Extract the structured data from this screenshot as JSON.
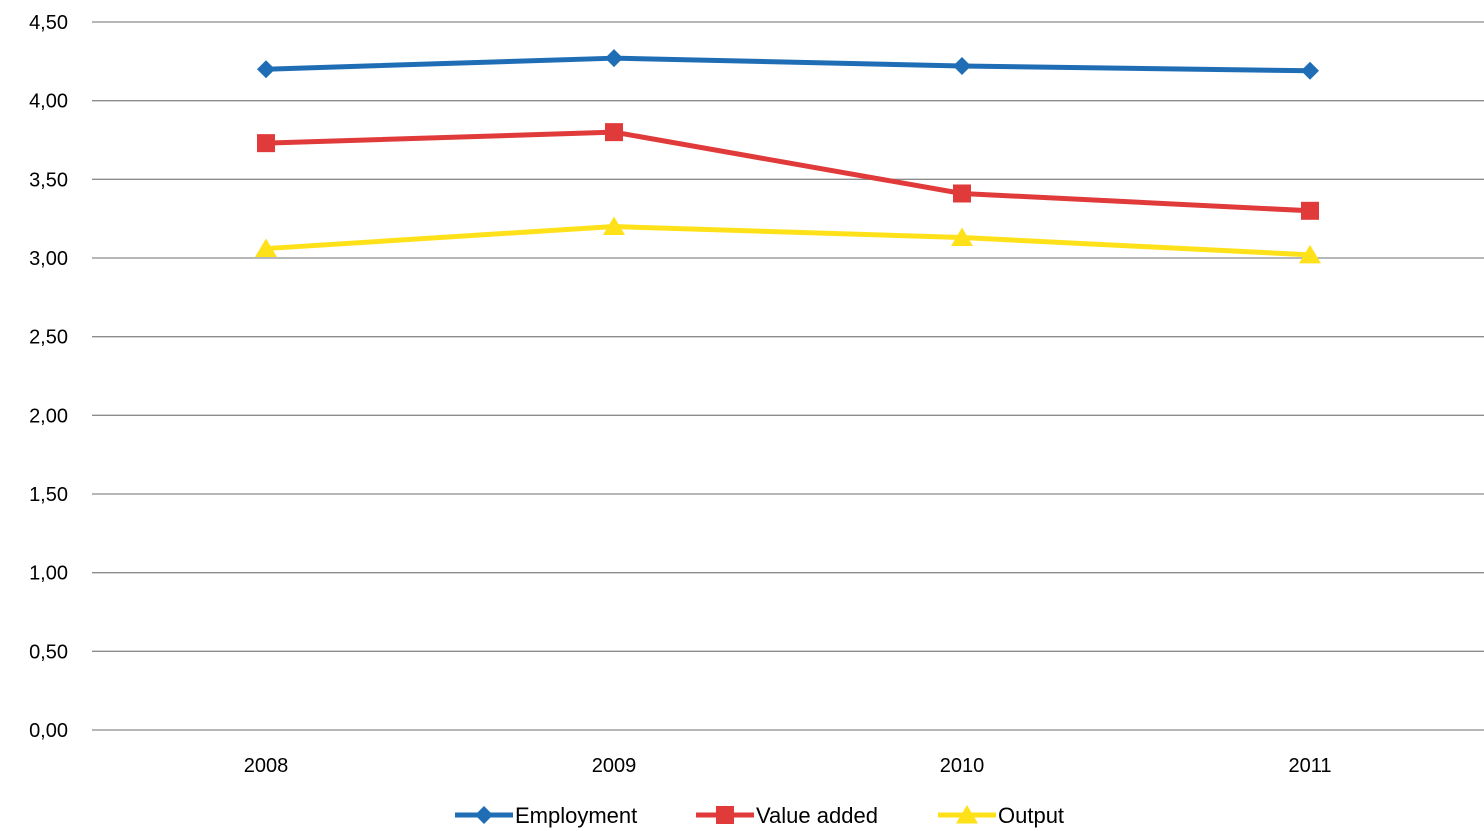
{
  "chart_data": {
    "type": "line",
    "title": "",
    "xlabel": "",
    "ylabel": "",
    "categories": [
      "2008",
      "2009",
      "2010",
      "2011"
    ],
    "ylim": [
      0,
      4.5
    ],
    "yticks": [
      "0,00",
      "0,50",
      "1,00",
      "1,50",
      "2,00",
      "2,50",
      "3,00",
      "3,50",
      "4,00",
      "4,50"
    ],
    "grid": true,
    "legend_position": "bottom",
    "series": [
      {
        "name": "Employment",
        "values": [
          4.2,
          4.27,
          4.22,
          4.19
        ],
        "color": "#1f6db5",
        "marker": "diamond"
      },
      {
        "name": "Value added",
        "values": [
          3.73,
          3.8,
          3.41,
          3.3
        ],
        "color": "#e03a3a",
        "marker": "square"
      },
      {
        "name": "Output",
        "values": [
          3.06,
          3.2,
          3.13,
          3.02
        ],
        "color": "#ffe11a",
        "marker": "triangle"
      }
    ]
  }
}
